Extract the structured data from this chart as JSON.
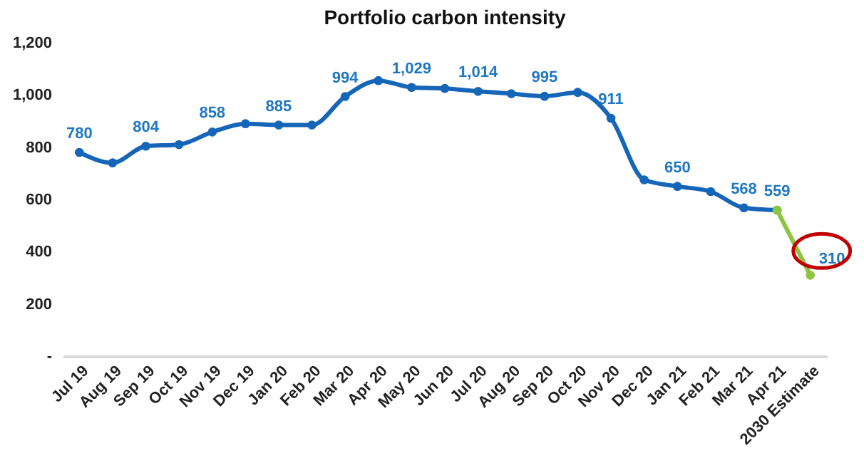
{
  "chart_data": {
    "type": "line",
    "title": "Portfolio carbon intensity",
    "categories": [
      "Jul 19",
      "Aug 19",
      "Sep 19",
      "Oct 19",
      "Nov 19",
      "Dec 19",
      "Jan 20",
      "Feb 20",
      "Mar 20",
      "Apr 20",
      "May 20",
      "Jun 20",
      "Jul 20",
      "Aug 20",
      "Sep 20",
      "Oct 20",
      "Nov 20",
      "Dec 20",
      "Jan 21",
      "Feb 21",
      "Mar 21",
      "Apr 21",
      "2030 Estimate"
    ],
    "series": [
      {
        "color": "#1565b8",
        "values": [
          780,
          740,
          804,
          810,
          858,
          890,
          885,
          885,
          994,
          1055,
          1029,
          1025,
          1014,
          1005,
          995,
          1010,
          911,
          675,
          650,
          630,
          568,
          559,
          null
        ],
        "value_labels": [
          "780",
          null,
          "804",
          null,
          "858",
          null,
          "885",
          null,
          "994",
          null,
          "1,029",
          null,
          "1,014",
          null,
          "995",
          null,
          "911",
          null,
          "650",
          null,
          "568",
          "559",
          null
        ]
      },
      {
        "color": "#8cc63f",
        "values": [
          null,
          null,
          null,
          null,
          null,
          null,
          null,
          null,
          null,
          null,
          null,
          null,
          null,
          null,
          null,
          null,
          null,
          null,
          null,
          null,
          null,
          559,
          310
        ],
        "value_labels": [
          null,
          null,
          null,
          null,
          null,
          null,
          null,
          null,
          null,
          null,
          null,
          null,
          null,
          null,
          null,
          null,
          null,
          null,
          null,
          null,
          null,
          null,
          "310"
        ]
      }
    ],
    "ylim": [
      0,
      1200
    ],
    "yticks": [
      {
        "value": 0,
        "label": "-"
      },
      200,
      400,
      600,
      800,
      {
        "value": 1000,
        "label": "1,000"
      },
      {
        "value": 1200,
        "label": "1,200"
      }
    ],
    "marker": "circle",
    "line_style": "solid"
  }
}
